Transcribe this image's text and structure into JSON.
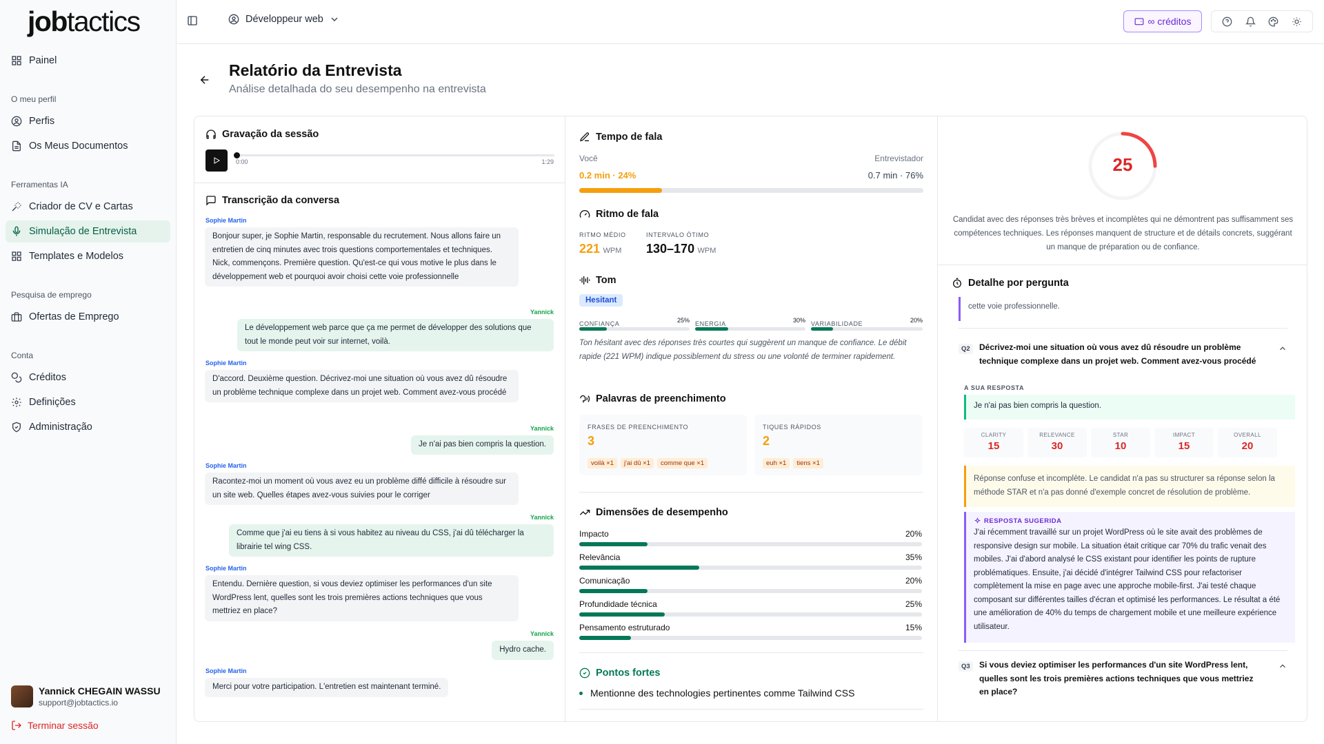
{
  "brand": {
    "logo_bold": "job",
    "logo_rest": "tactics"
  },
  "sidebar": {
    "panel": "Painel",
    "profile_section": "O meu perfil",
    "profiles": "Perfis",
    "documents": "Os Meus Documentos",
    "ai_section": "Ferramentas IA",
    "cv_creator": "Criador de CV e Cartas",
    "interview_sim": "Simulação de Entrevista",
    "templates": "Templates e Modelos",
    "job_section": "Pesquisa de emprego",
    "job_offers": "Ofertas de Emprego",
    "account_section": "Conta",
    "credits": "Créditos",
    "settings": "Definições",
    "admin": "Administração",
    "user_name": "Yannick CHEGAIN WASSU",
    "user_email": "support@jobtactics.io",
    "logout": "Terminar sessão"
  },
  "topbar": {
    "role": "Développeur web",
    "credits": "∞ créditos"
  },
  "page": {
    "title": "Relatório da Entrevista",
    "subtitle": "Análise detalhada do seu desempenho na entrevista"
  },
  "recording": {
    "title": "Gravação da sessão",
    "time_start": "0:00",
    "time_end": "1:29"
  },
  "transcript": {
    "title": "Transcrição da conversa",
    "messages": [
      {
        "speaker": "Sophie Martin",
        "text": "Bonjour super, je Sophie Martin, responsable du recrutement. Nous allons faire un entretien de cinq minutes avec trois questions comportementales et techniques. Nick, commençons. Première question. Qu'est-ce qui vous motive le plus dans le développement web et pourquoi avoir choisi cette voie professionnelle"
      },
      {
        "speaker": "Yannick",
        "text": "Le développement web parce que ça me permet de développer des solutions que tout le monde peut voir sur internet, voilà."
      },
      {
        "speaker": "Sophie Martin",
        "text": "D'accord. Deuxième question. Décrivez-moi une situation où vous avez dû résoudre un problème technique complexe dans un projet web. Comment avez-vous procédé"
      },
      {
        "speaker": "Yannick",
        "text": "Je n'ai pas bien compris la question."
      },
      {
        "speaker": "Sophie Martin",
        "text": "Racontez-moi un moment où vous avez eu un problème diffé difficile à résoudre sur un site web. Quelles étapes avez-vous suivies pour le corriger"
      },
      {
        "speaker": "Yannick",
        "text": "Comme que j'ai eu tiens à si vous habitez au niveau du CSS, j'ai dû télécharger la librairie tel wing CSS."
      },
      {
        "speaker": "Sophie Martin",
        "text": "Entendu. Dernière question, si vous deviez optimiser les performances d'un site WordPress lent, quelles sont les trois premières actions techniques que vous mettriez en place?"
      },
      {
        "speaker": "Yannick",
        "text": "Hydro cache."
      },
      {
        "speaker": "Sophie Martin",
        "text": "Merci pour votre participation. L'entretien est maintenant terminé."
      }
    ]
  },
  "speaking_time": {
    "title": "Tempo de fala",
    "you_label": "Você",
    "interviewer_label": "Entrevistador",
    "you_value": "0.2 min · 24%",
    "interviewer_value": "0.7 min · 76%",
    "you_fraction": 0.24
  },
  "pace": {
    "title": "Ritmo de fala",
    "avg_label": "RITMO MÉDIO",
    "avg_value": "221",
    "avg_unit": "WPM",
    "opt_label": "INTERVALO ÓTIMO",
    "opt_value": "130–170",
    "opt_unit": "WPM"
  },
  "tone": {
    "title": "Tom",
    "badge": "Hesitant",
    "metrics": [
      {
        "label": "CONFIANÇA",
        "value": "25%",
        "fraction": 0.25
      },
      {
        "label": "ENERGIA",
        "value": "30%",
        "fraction": 0.3
      },
      {
        "label": "VARIABILIDADE",
        "value": "20%",
        "fraction": 0.2
      }
    ],
    "note": "Ton hésitant avec des réponses très courtes qui suggèrent un manque de confiance. Le débit rapide (221 WPM) indique possiblement du stress ou une volonté de terminer rapidement."
  },
  "fillers": {
    "title": "Palavras de preenchimento",
    "phrases_label": "FRASES DE PREENCHIMENTO",
    "phrases_count": "3",
    "phrases_tags": [
      "voilà ×1",
      "j'ai dû ×1",
      "comme que ×1"
    ],
    "tics_label": "TIQUES RÁPIDOS",
    "tics_count": "2",
    "tics_tags": [
      "euh ×1",
      "tiens ×1"
    ]
  },
  "dimensions": {
    "title": "Dimensões de desempenho",
    "items": [
      {
        "label": "Impacto",
        "value": "20%",
        "fraction": 0.2
      },
      {
        "label": "Relevância",
        "value": "35%",
        "fraction": 0.35
      },
      {
        "label": "Comunicação",
        "value": "20%",
        "fraction": 0.2
      },
      {
        "label": "Profundidade técnica",
        "value": "25%",
        "fraction": 0.25
      },
      {
        "label": "Pensamento estruturado",
        "value": "15%",
        "fraction": 0.15
      }
    ]
  },
  "strengths": {
    "title": "Pontos fortes",
    "items": [
      "Mentionne des technologies pertinentes comme Tailwind CSS"
    ]
  },
  "overall": {
    "score": "25",
    "score_fraction": 0.25,
    "summary": "Candidat avec des réponses très brèves et incomplètes qui ne démontrent pas suffisamment ses compétences techniques. Les réponses manquent de structure et de détails concrets, suggérant un manque de préparation ou de confiance."
  },
  "questions": {
    "title": "Detalhe por pergunta",
    "q1_tail": "cette voie professionnelle.",
    "q2": {
      "num": "Q2",
      "text": "Décrivez-moi une situation où vous avez dû résoudre un problème technique complexe dans un projet web. Comment avez-vous procédé",
      "answer_label": "A SUA RESPOSTA",
      "answer": "Je n'ai pas bien compris la question.",
      "scores": [
        {
          "k": "CLARITY",
          "v": "15"
        },
        {
          "k": "RELEVANCE",
          "v": "30"
        },
        {
          "k": "STAR",
          "v": "10"
        },
        {
          "k": "IMPACT",
          "v": "15"
        },
        {
          "k": "OVERALL",
          "v": "20"
        }
      ],
      "feedback": "Réponse confuse et incomplète. Le candidat n'a pas su structurer sa réponse selon la méthode STAR et n'a pas donné d'exemple concret de résolution de problème.",
      "suggested_label": "RESPOSTA SUGERIDA",
      "suggested": "J'ai récemment travaillé sur un projet WordPress où le site avait des problèmes de responsive design sur mobile. La situation était critique car 70% du trafic venait des mobiles. J'ai d'abord analysé le CSS existant pour identifier les points de rupture problématiques. Ensuite, j'ai décidé d'intégrer Tailwind CSS pour refactoriser complètement la mise en page avec une approche mobile-first. J'ai testé chaque composant sur différentes tailles d'écran et optimisé les performances. Le résultat a été une amélioration de 40% du temps de chargement mobile et une meilleure expérience utilisateur."
    },
    "q3": {
      "num": "Q3",
      "text": "Si vous deviez optimiser les performances d'un site WordPress lent, quelles sont les trois premières actions techniques que vous mettriez en place?"
    }
  },
  "colors": {
    "accent": "#047857",
    "warning": "#f59e0b",
    "danger": "#dc2626",
    "purple": "#6d28d9"
  }
}
